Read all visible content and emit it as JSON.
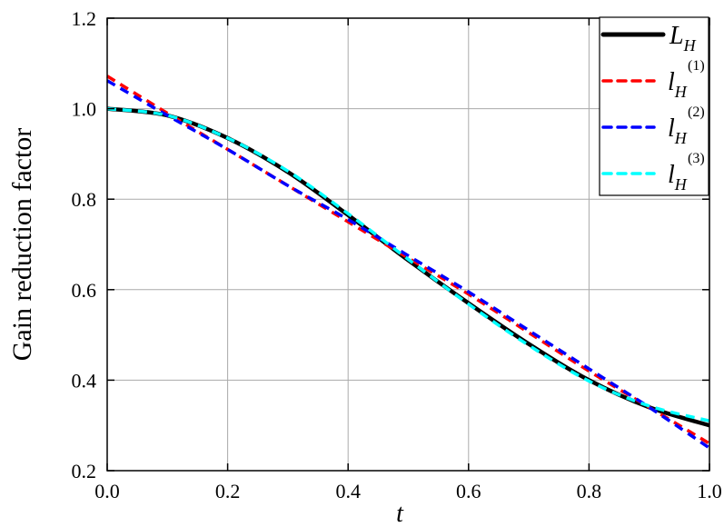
{
  "chart_data": {
    "type": "line",
    "title": "",
    "xlabel": "t",
    "ylabel": "Gain reduction factor",
    "xlim": [
      0,
      1
    ],
    "ylim": [
      0.2,
      1.2
    ],
    "xticks": [
      "0.0",
      "0.2",
      "0.4",
      "0.6",
      "0.8",
      "1.0"
    ],
    "yticks": [
      "0.2",
      "0.4",
      "0.6",
      "0.8",
      "1.0",
      "1.2"
    ],
    "grid": true,
    "legend_placement": "top-right",
    "x": [
      0,
      0.1,
      0.2,
      0.3,
      0.4,
      0.5,
      0.6,
      0.7,
      0.8,
      0.9,
      1.0
    ],
    "series": [
      {
        "name": "L_H",
        "base": "L",
        "sub": "H",
        "sup": "",
        "color": "#000000",
        "dash": false,
        "values": [
          1.0,
          0.985,
          0.935,
          0.86,
          0.765,
          0.665,
          0.57,
          0.48,
          0.4,
          0.34,
          0.3
        ]
      },
      {
        "name": "l_H^(1)",
        "base": "l",
        "sub": "H",
        "sup": "(1)",
        "color": "#ff0000",
        "dash": true,
        "values": [
          1.072,
          0.99,
          0.91,
          0.83,
          0.75,
          0.67,
          0.59,
          0.505,
          0.42,
          0.34,
          0.26
        ]
      },
      {
        "name": "l_H^(2)",
        "base": "l",
        "sub": "H",
        "sup": "(2)",
        "color": "#0000ff",
        "dash": true,
        "values": [
          1.062,
          0.985,
          0.91,
          0.83,
          0.755,
          0.675,
          0.595,
          0.51,
          0.425,
          0.34,
          0.25
        ]
      },
      {
        "name": "l_H^(3)",
        "base": "l",
        "sub": "H",
        "sup": "(3)",
        "color": "#00ffff",
        "dash": true,
        "values": [
          1.0,
          0.985,
          0.935,
          0.862,
          0.768,
          0.667,
          0.568,
          0.477,
          0.398,
          0.343,
          0.31
        ]
      }
    ]
  }
}
